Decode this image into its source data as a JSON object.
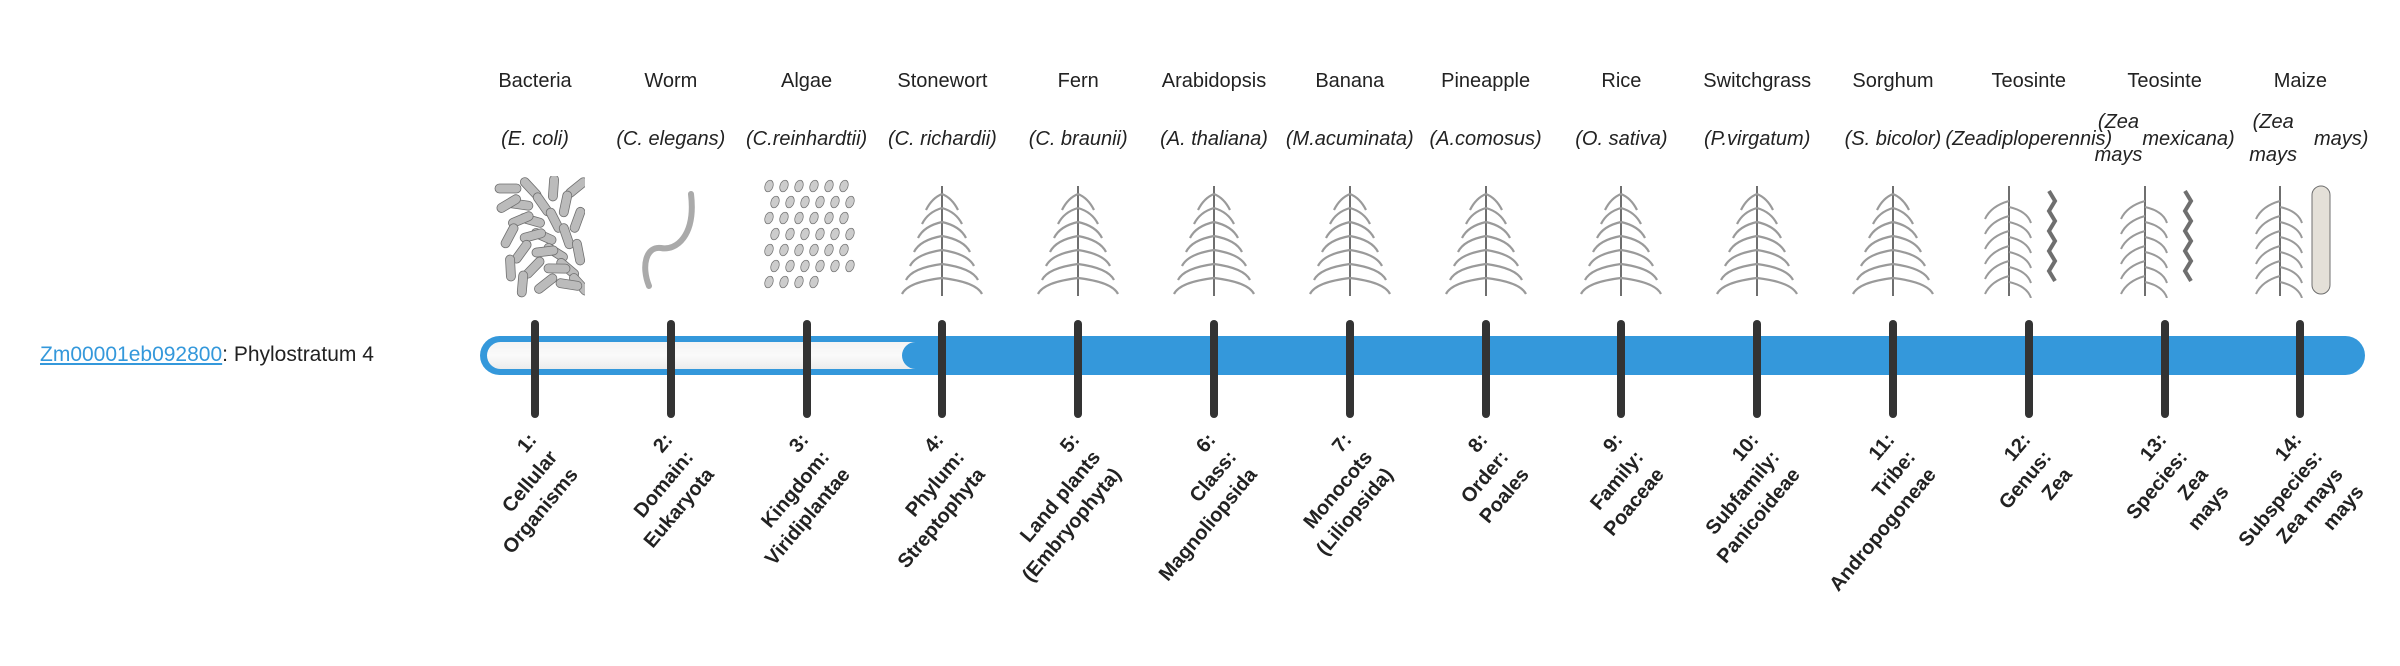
{
  "gene": {
    "id": "Zm00001eb092800",
    "separator": ": ",
    "phylostratum_text": "Phylostratum 4",
    "phylostratum": 4
  },
  "colors": {
    "accent": "#3498db",
    "tick": "#333333",
    "link": "#3498db"
  },
  "progress": {
    "current": 4,
    "total": 14
  },
  "strata": [
    {
      "name": "Bacteria",
      "species": [
        "(E. coli)"
      ],
      "icon": "bacteria-icon",
      "label": [
        "1:",
        "Cellular",
        "Organisms"
      ]
    },
    {
      "name": "Worm",
      "species": [
        "(C. elegans)"
      ],
      "icon": "worm-icon",
      "label": [
        "2:",
        "Domain:",
        "Eukaryota"
      ]
    },
    {
      "name": "Algae",
      "species": [
        "(C.",
        "reinhardtii)"
      ],
      "icon": "algae-icon",
      "label": [
        "3:",
        "Kingdom:",
        "Viridiplantae"
      ]
    },
    {
      "name": "Stonewort",
      "species": [
        "(C. richardii)"
      ],
      "icon": "stonewort-icon",
      "label": [
        "4:",
        "Phylum:",
        "Streptophyta"
      ]
    },
    {
      "name": "Fern",
      "species": [
        "(C. braunii)"
      ],
      "icon": "fern-icon",
      "label": [
        "5:",
        "Land plants",
        "(Embryophyta)"
      ]
    },
    {
      "name": "Arabidopsis",
      "species": [
        "(A. thaliana)"
      ],
      "icon": "arabidopsis-icon",
      "label": [
        "6:",
        "Class:",
        "Magnoliopsida"
      ]
    },
    {
      "name": "Banana",
      "species": [
        "(M.",
        "acuminata)"
      ],
      "icon": "banana-icon",
      "label": [
        "7:",
        "Monocots",
        "(Liliopsida)"
      ]
    },
    {
      "name": "Pineapple",
      "species": [
        "(A.",
        "comosus)"
      ],
      "icon": "pineapple-icon",
      "label": [
        "8:",
        "Order:",
        "Poales"
      ]
    },
    {
      "name": "Rice",
      "species": [
        "(O. sativa)"
      ],
      "icon": "rice-icon",
      "label": [
        "9:",
        "Family:",
        "Poaceae"
      ]
    },
    {
      "name": "Switchgrass",
      "species": [
        "(P.",
        "virgatum)"
      ],
      "icon": "switchgrass-icon",
      "label": [
        "10:",
        "Subfamily:",
        "Panicoideae"
      ]
    },
    {
      "name": "Sorghum",
      "species": [
        "(S. bicolor)"
      ],
      "icon": "sorghum-icon",
      "label": [
        "11:",
        "Tribe:",
        "Andropogoneae"
      ]
    },
    {
      "name": "Teosinte",
      "species": [
        "(Zea",
        "diploperennis)"
      ],
      "icon": "teosinte-icon",
      "label": [
        "12:",
        "Genus:",
        "Zea"
      ]
    },
    {
      "name": "Teosinte",
      "species": [
        "(Zea mays",
        "mexicana)"
      ],
      "icon": "teosinte-icon",
      "label": [
        "13:",
        "Species:",
        "Zea",
        "mays"
      ]
    },
    {
      "name": "Maize",
      "species": [
        "(Zea mays",
        "mays)"
      ],
      "icon": "maize-icon",
      "label": [
        "14:",
        "Subspecies:",
        "Zea mays",
        "mays"
      ]
    }
  ]
}
